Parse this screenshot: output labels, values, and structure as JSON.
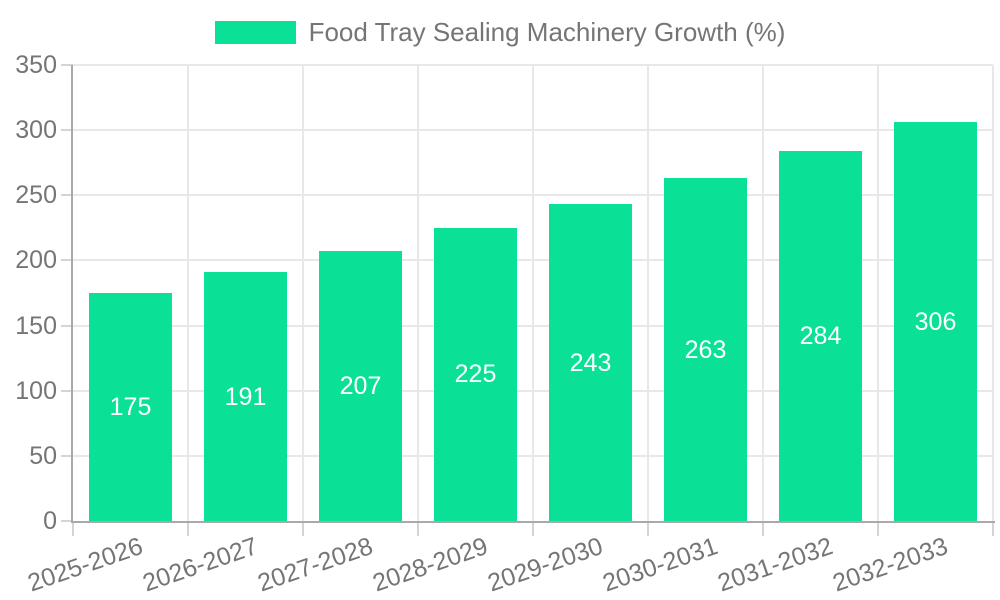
{
  "chart_data": {
    "type": "bar",
    "title": "",
    "series_name": "Food Tray Sealing Machinery Growth (%)",
    "categories": [
      "2025-2026",
      "2026-2027",
      "2027-2028",
      "2028-2029",
      "2029-2030",
      "2030-2031",
      "2031-2032",
      "2032-2033"
    ],
    "values": [
      175,
      191,
      207,
      225,
      243,
      263,
      284,
      306
    ],
    "xlabel": "",
    "ylabel": "",
    "ylim": [
      0,
      350
    ],
    "yticks": [
      0,
      50,
      100,
      150,
      200,
      250,
      300,
      350
    ],
    "grid": true,
    "legend_position": "top-center",
    "bar_color": "#0ae196",
    "value_label_color": "#ffffff",
    "axis_text_color": "#757575",
    "grid_color": "#e8e8e8",
    "axis_line_color": "#a9a9a9",
    "tick_mark_color": "#d4d4d4"
  }
}
